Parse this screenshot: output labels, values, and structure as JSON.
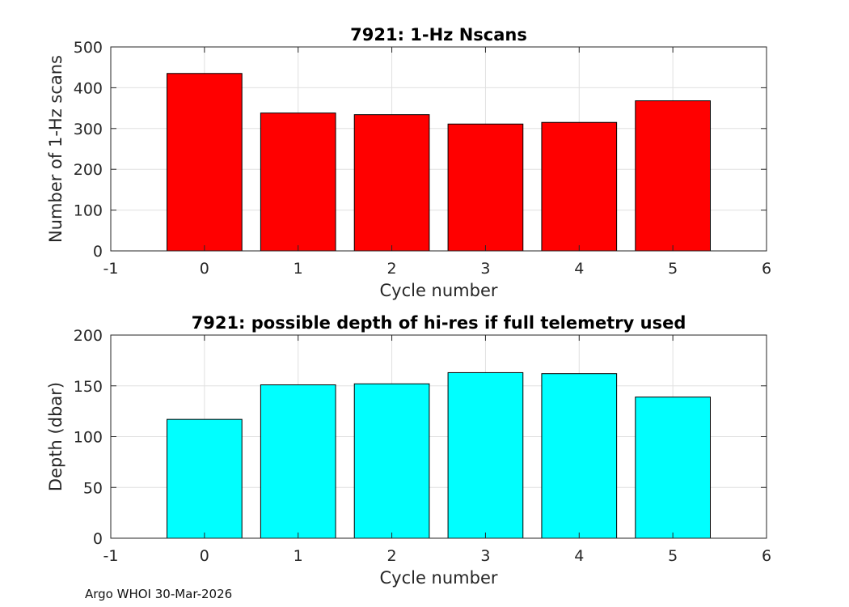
{
  "footer": "Argo WHOI 30-Mar-2026",
  "chart_data": [
    {
      "type": "bar",
      "title": "7921: 1-Hz Nscans",
      "xlabel": "Cycle number",
      "ylabel": "Number of 1-Hz scans",
      "x": [
        0,
        1,
        2,
        3,
        4,
        5
      ],
      "values": [
        435,
        338,
        334,
        311,
        315,
        368
      ],
      "xlim": [
        -1,
        6
      ],
      "ylim": [
        0,
        500
      ],
      "xticks": [
        "-1",
        "0",
        "1",
        "2",
        "3",
        "4",
        "5",
        "6"
      ],
      "yticks": [
        "0",
        "100",
        "200",
        "300",
        "400",
        "500"
      ],
      "bar_color": "#ff0000",
      "grid": true
    },
    {
      "type": "bar",
      "title": "7921: possible depth of hi-res if full telemetry used",
      "xlabel": "Cycle number",
      "ylabel": "Depth (dbar)",
      "x": [
        0,
        1,
        2,
        3,
        4,
        5
      ],
      "values": [
        117,
        151,
        152,
        163,
        162,
        139
      ],
      "xlim": [
        -1,
        6
      ],
      "ylim": [
        0,
        200
      ],
      "xticks": [
        "-1",
        "0",
        "1",
        "2",
        "3",
        "4",
        "5",
        "6"
      ],
      "yticks": [
        "0",
        "50",
        "100",
        "150",
        "200"
      ],
      "bar_color": "#00ffff",
      "grid": true
    }
  ]
}
